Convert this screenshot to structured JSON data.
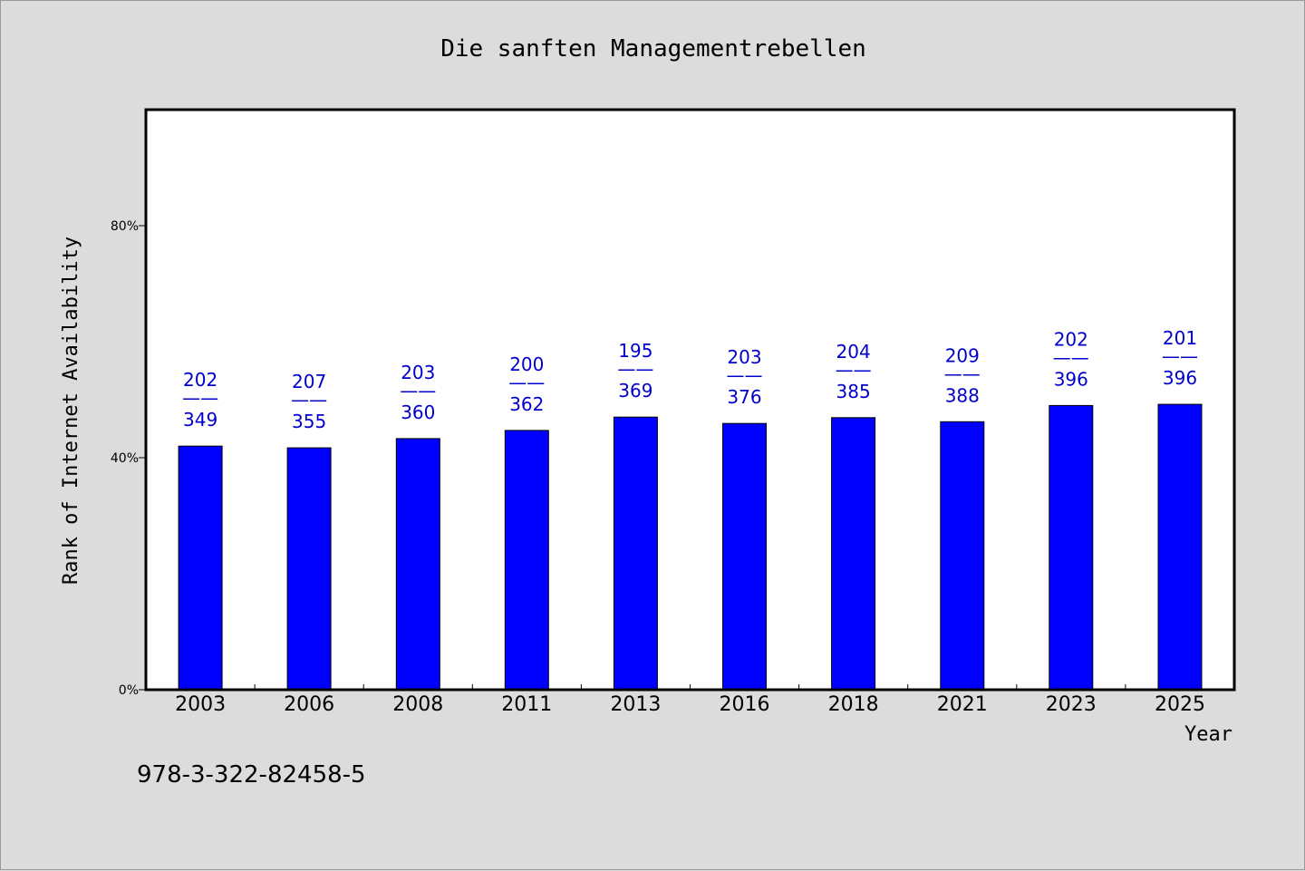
{
  "chart_data": {
    "type": "bar",
    "title": "Die sanften Managementrebellen",
    "xlabel": "Year",
    "ylabel": "Rank of Internet Availability",
    "categories": [
      "2003",
      "2006",
      "2008",
      "2011",
      "2013",
      "2016",
      "2018",
      "2021",
      "2023",
      "2025"
    ],
    "values": [
      0.42,
      0.417,
      0.433,
      0.447,
      0.47,
      0.459,
      0.469,
      0.462,
      0.49,
      0.492
    ],
    "ratio_labels": [
      {
        "top": "202",
        "bottom": "349"
      },
      {
        "top": "207",
        "bottom": "355"
      },
      {
        "top": "203",
        "bottom": "360"
      },
      {
        "top": "200",
        "bottom": "362"
      },
      {
        "top": "195",
        "bottom": "369"
      },
      {
        "top": "203",
        "bottom": "376"
      },
      {
        "top": "204",
        "bottom": "385"
      },
      {
        "top": "209",
        "bottom": "388"
      },
      {
        "top": "202",
        "bottom": "396"
      },
      {
        "top": "201",
        "bottom": "396"
      }
    ],
    "label_separator": "——",
    "ylim": [
      0,
      1.0
    ],
    "yticks": [
      0,
      0.4,
      0.8
    ],
    "ytick_labels": [
      "0%",
      "40%",
      "80%"
    ],
    "grid": false,
    "bar_color": "#0000ff",
    "label_color": "#0000cc",
    "background": "#dcdcdc",
    "plot_background": "#ffffff"
  },
  "footnote": "978-3-322-82458-5"
}
